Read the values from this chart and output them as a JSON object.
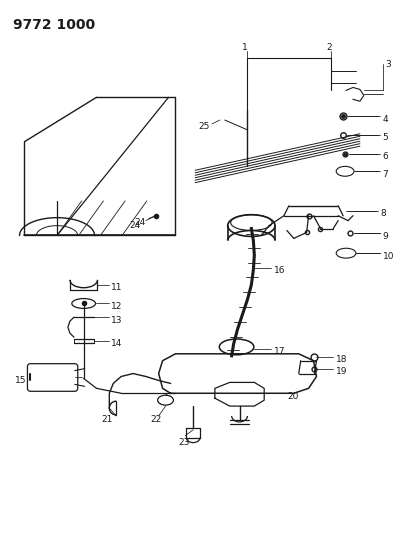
{
  "title": "9772 1000",
  "bg_color": "#ffffff",
  "line_color": "#1a1a1a",
  "figsize": [
    4.12,
    5.33
  ],
  "dpi": 100
}
